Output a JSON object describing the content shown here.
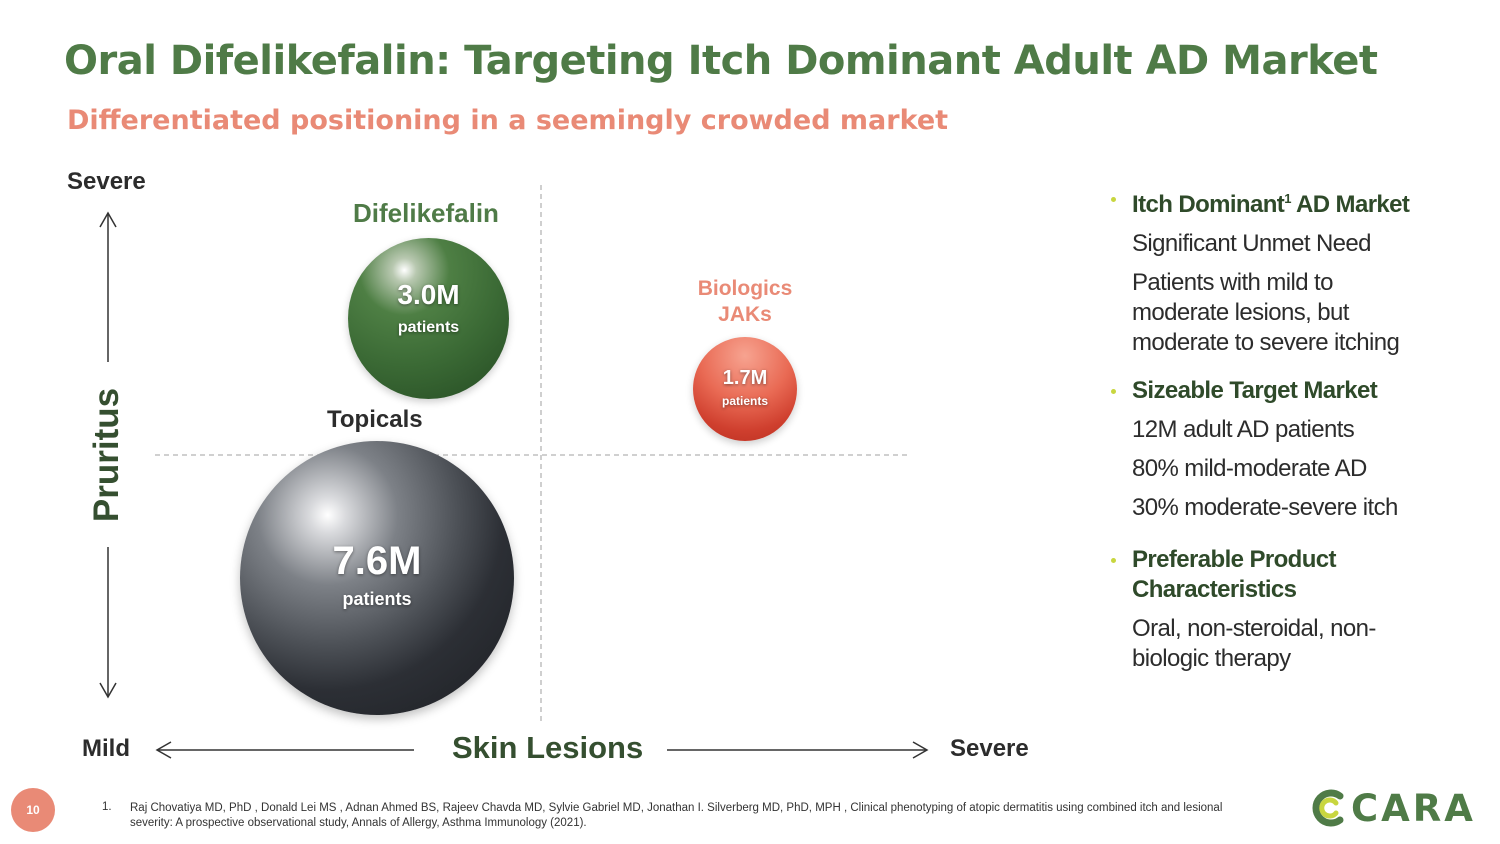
{
  "header": {
    "title": "Oral Difelikefalin: Targeting Itch Dominant Adult AD Market",
    "subtitle": "Differentiated positioning in a seemingly crowded market"
  },
  "matrix": {
    "y_axis": {
      "label": "Pruritus",
      "top": "Severe"
    },
    "x_axis": {
      "label": "Skin Lesions",
      "left": "Mild",
      "right": "Severe"
    },
    "bubbles": [
      {
        "title": "Difelikefalin",
        "value": "3.0M",
        "unit": "patients",
        "color": "#4f7b47"
      },
      {
        "title": "Biologics JAKs",
        "value": "1.7M",
        "unit": "patients",
        "color": "#e05a45"
      },
      {
        "title": "Topicals",
        "value": "7.6M",
        "unit": "patients",
        "color": "#3a3d42"
      }
    ]
  },
  "bullets": [
    {
      "heading": "Itch Dominant",
      "heading_sup": "1",
      "heading_tail": " AD Market",
      "lines": [
        "Significant Unmet Need",
        "Patients with mild to moderate lesions, but moderate to severe itching"
      ]
    },
    {
      "heading": "Sizeable Target Market",
      "lines": [
        "12M adult AD patients",
        "80% mild-moderate AD",
        "30% moderate-severe itch"
      ]
    },
    {
      "heading": "Preferable Product Characteristics",
      "lines": [
        "Oral, non-steroidal, non-biologic therapy"
      ]
    }
  ],
  "footer": {
    "page_number": "10",
    "footnote_number": "1.",
    "footnote": "Raj Chovatiya MD, PhD , Donald Lei MS , Adnan Ahmed BS, Rajeev Chavda MD, Sylvie Gabriel MD, Jonathan I. Silverberg MD, PhD, MPH , Clinical phenotyping of atopic dermatitis using combined itch and lesional severity: A prospective observational study, Annals of Allergy, Asthma Immunology (2021).",
    "logo_text": "CARA"
  },
  "colors": {
    "brand_green": "#4f7b47",
    "accent_salmon": "#e98a76",
    "bullet_dot": "#c8d63f"
  }
}
